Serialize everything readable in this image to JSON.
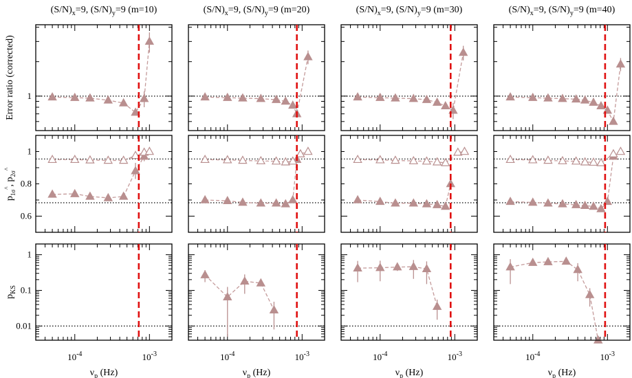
{
  "figure": {
    "xlabel": "ν_p (Hz)",
    "row_ylabels": [
      "Error ratio (corrected)",
      "p_1σ^, p_2σ^",
      "p_KS"
    ],
    "x_ticks": [
      {
        "label": "10^-4",
        "value": 0.0001
      },
      {
        "label": "10^-3",
        "value": 0.001
      }
    ],
    "y_ticks": {
      "row0": [
        {
          "label": "1",
          "value": 1
        }
      ],
      "row1": [
        {
          "label": "0.6",
          "value": 0.6
        },
        {
          "label": "0.8",
          "value": 0.8
        },
        {
          "label": "1",
          "value": 1.0
        }
      ],
      "row2": [
        {
          "label": "0.01",
          "value": 0.01
        },
        {
          "label": "0.1",
          "value": 0.1
        },
        {
          "label": "1",
          "value": 1
        }
      ]
    },
    "colors": {
      "marker": "#b98f8f",
      "line": "#c49a9a",
      "vline": "#e01010",
      "ref": "#000000"
    }
  },
  "chart_data": [
    {
      "type": "scatter",
      "title": "(S/N)x=9, (S/N)y=9 (m=10)",
      "title_parts": {
        "a": "(S/N)",
        "sub1": "x",
        "b": "=9, (S/N)",
        "sub2": "y",
        "c": "=9 (m=10)"
      },
      "xscale": "log",
      "xlim": [
        3e-05,
        0.002
      ],
      "vline": 0.00072,
      "panels": [
        {
          "row": 0,
          "yscale": "log",
          "ylim": [
            0.5,
            4.2
          ],
          "ref_lines": [
            1
          ],
          "series": [
            {
              "name": "error ratio",
              "filled": true,
              "x": [
                5e-05,
                0.0001,
                0.00016,
                0.00028,
                0.00045,
                0.00065,
                0.00085,
                0.001
              ],
              "y": [
                0.98,
                0.97,
                0.96,
                0.92,
                0.87,
                0.72,
                0.95,
                3.0
              ],
              "err": [
                0,
                0,
                0,
                0,
                0,
                0,
                0.15,
                0.6
              ]
            }
          ]
        },
        {
          "row": 1,
          "yscale": "linear",
          "ylim": [
            0.5,
            1.1
          ],
          "ref_lines": [
            0.683,
            0.954
          ],
          "series": [
            {
              "name": "p_1sigma",
              "filled": true,
              "x": [
                5e-05,
                0.0001,
                0.00016,
                0.00028,
                0.00045,
                0.00065,
                0.00085
              ],
              "y": [
                0.735,
                0.738,
                0.722,
                0.713,
                0.722,
                0.88,
                0.97
              ],
              "err": [
                0,
                0,
                0,
                0,
                0,
                0.05,
                0.03
              ]
            },
            {
              "name": "p_2sigma",
              "filled": false,
              "x": [
                5e-05,
                0.0001,
                0.00016,
                0.00028,
                0.00045,
                0.00065,
                0.00085,
                0.001
              ],
              "y": [
                0.95,
                0.95,
                0.947,
                0.945,
                0.945,
                0.975,
                0.995,
                1.0
              ],
              "err": [
                0,
                0,
                0,
                0,
                0,
                0,
                0,
                0
              ]
            }
          ]
        },
        {
          "row": 2,
          "yscale": "log",
          "ylim": [
            0.004,
            2
          ],
          "ref_lines": [
            0.01
          ],
          "series": []
        }
      ]
    },
    {
      "type": "scatter",
      "title": "(S/N)x=9, (S/N)y=9 (m=20)",
      "title_parts": {
        "a": "(S/N)",
        "sub1": "x",
        "b": "=9, (S/N)",
        "sub2": "y",
        "c": "=9 (m=20)"
      },
      "xscale": "log",
      "xlim": [
        3e-05,
        0.002
      ],
      "vline": 0.00085,
      "panels": [
        {
          "row": 0,
          "yscale": "log",
          "ylim": [
            0.5,
            4.2
          ],
          "ref_lines": [
            1
          ],
          "series": [
            {
              "name": "error ratio",
              "filled": true,
              "x": [
                5e-05,
                0.0001,
                0.00016,
                0.00028,
                0.00045,
                0.0006,
                0.00075,
                0.00085,
                0.0012
              ],
              "y": [
                0.98,
                0.97,
                0.96,
                0.95,
                0.93,
                0.9,
                0.83,
                0.7,
                2.2
              ],
              "err": [
                0,
                0,
                0,
                0,
                0,
                0,
                0,
                0,
                0.3
              ]
            }
          ]
        },
        {
          "row": 1,
          "yscale": "linear",
          "ylim": [
            0.5,
            1.1
          ],
          "ref_lines": [
            0.683,
            0.954
          ],
          "series": [
            {
              "name": "p_1sigma",
              "filled": true,
              "x": [
                5e-05,
                0.0001,
                0.00016,
                0.00028,
                0.00045,
                0.0006,
                0.00075,
                0.00085
              ],
              "y": [
                0.7,
                0.695,
                0.685,
                0.68,
                0.68,
                0.675,
                0.7,
                0.95
              ],
              "err": [
                0,
                0,
                0,
                0,
                0,
                0,
                0,
                0
              ]
            },
            {
              "name": "p_2sigma",
              "filled": false,
              "x": [
                5e-05,
                0.0001,
                0.00016,
                0.00028,
                0.00045,
                0.0006,
                0.00075,
                0.00095,
                0.0012
              ],
              "y": [
                0.95,
                0.948,
                0.945,
                0.942,
                0.94,
                0.935,
                0.94,
                0.985,
                1.0
              ],
              "err": [
                0,
                0,
                0,
                0,
                0,
                0,
                0,
                0,
                0
              ]
            }
          ]
        },
        {
          "row": 2,
          "yscale": "log",
          "ylim": [
            0.004,
            2
          ],
          "ref_lines": [
            0.01
          ],
          "series": [
            {
              "name": "p_KS",
              "filled": true,
              "x": [
                5e-05,
                0.0001,
                0.00017,
                0.00028,
                0.00042
              ],
              "y": [
                0.27,
                0.065,
                0.18,
                0.16,
                0.028
              ],
              "err": [
                0.1,
                0.06,
                0.1,
                0.03,
                0.02
              ]
            }
          ]
        }
      ]
    },
    {
      "type": "scatter",
      "title": "(S/N)x=9, (S/N)y=9 (m=30)",
      "title_parts": {
        "a": "(S/N)",
        "sub1": "x",
        "b": "=9, (S/N)",
        "sub2": "y",
        "c": "=9 (m=30)"
      },
      "xscale": "log",
      "xlim": [
        3e-05,
        0.002
      ],
      "vline": 0.00088,
      "panels": [
        {
          "row": 0,
          "yscale": "log",
          "ylim": [
            0.5,
            4.2
          ],
          "ref_lines": [
            1
          ],
          "series": [
            {
              "name": "error ratio",
              "filled": true,
              "x": [
                5e-05,
                0.0001,
                0.00016,
                0.00028,
                0.00042,
                0.00058,
                0.00075,
                0.00095,
                0.0013
              ],
              "y": [
                0.98,
                0.97,
                0.96,
                0.95,
                0.93,
                0.88,
                0.82,
                0.75,
                2.4
              ],
              "err": [
                0,
                0,
                0,
                0,
                0,
                0,
                0,
                0.12,
                0.35
              ]
            }
          ]
        },
        {
          "row": 1,
          "yscale": "linear",
          "ylim": [
            0.5,
            1.1
          ],
          "ref_lines": [
            0.683,
            0.954
          ],
          "series": [
            {
              "name": "p_1sigma",
              "filled": true,
              "x": [
                5e-05,
                0.0001,
                0.00016,
                0.00028,
                0.00042,
                0.00058,
                0.00075,
                0.00088
              ],
              "y": [
                0.7,
                0.69,
                0.68,
                0.68,
                0.675,
                0.67,
                0.66,
                0.8
              ],
              "err": [
                0,
                0,
                0,
                0,
                0,
                0,
                0,
                0
              ]
            },
            {
              "name": "p_2sigma",
              "filled": false,
              "x": [
                5e-05,
                0.0001,
                0.00016,
                0.00028,
                0.00042,
                0.00058,
                0.00075,
                0.0011,
                0.00135
              ],
              "y": [
                0.95,
                0.948,
                0.945,
                0.942,
                0.94,
                0.935,
                0.93,
                0.995,
                1.0
              ],
              "err": [
                0,
                0,
                0,
                0,
                0,
                0,
                0,
                0,
                0
              ]
            }
          ]
        },
        {
          "row": 2,
          "yscale": "log",
          "ylim": [
            0.004,
            2
          ],
          "ref_lines": [
            0.01
          ],
          "series": [
            {
              "name": "p_KS",
              "filled": true,
              "x": [
                5e-05,
                0.0001,
                0.00017,
                0.00028,
                0.00042,
                0.00058
              ],
              "y": [
                0.42,
                0.43,
                0.45,
                0.46,
                0.4,
                0.035
              ],
              "err": [
                0.25,
                0.25,
                0.1,
                0.25,
                0.25,
                0.02
              ]
            }
          ]
        }
      ]
    },
    {
      "type": "scatter",
      "title": "(S/N)x=9, (S/N)y=9 (m=40)",
      "title_parts": {
        "a": "(S/N)",
        "sub1": "x",
        "b": "=9, (S/N)",
        "sub2": "y",
        "c": "=9 (m=40)"
      },
      "xscale": "log",
      "xlim": [
        3e-05,
        0.002
      ],
      "vline": 0.00093,
      "panels": [
        {
          "row": 0,
          "yscale": "log",
          "ylim": [
            0.5,
            4.2
          ],
          "ref_lines": [
            1
          ],
          "series": [
            {
              "name": "error ratio",
              "filled": true,
              "x": [
                5e-05,
                0.0001,
                0.00016,
                0.00025,
                0.00038,
                0.0005,
                0.00065,
                0.00082,
                0.001,
                0.0012,
                0.0015
              ],
              "y": [
                0.98,
                0.97,
                0.96,
                0.95,
                0.94,
                0.92,
                0.88,
                0.82,
                0.75,
                0.6,
                1.9
              ],
              "err": [
                0,
                0,
                0,
                0,
                0,
                0,
                0,
                0,
                0,
                0,
                0.25
              ]
            }
          ]
        },
        {
          "row": 1,
          "yscale": "linear",
          "ylim": [
            0.5,
            1.1
          ],
          "ref_lines": [
            0.683,
            0.954
          ],
          "series": [
            {
              "name": "p_1sigma",
              "filled": true,
              "x": [
                5e-05,
                0.0001,
                0.00016,
                0.00025,
                0.00038,
                0.0005,
                0.00065,
                0.00082,
                0.001,
                0.0012
              ],
              "y": [
                0.69,
                0.685,
                0.68,
                0.675,
                0.67,
                0.665,
                0.66,
                0.645,
                0.69,
                0.97
              ],
              "err": [
                0,
                0,
                0,
                0,
                0,
                0,
                0,
                0,
                0,
                0
              ]
            },
            {
              "name": "p_2sigma",
              "filled": false,
              "x": [
                5e-05,
                0.0001,
                0.00016,
                0.00025,
                0.00038,
                0.0005,
                0.00065,
                0.00082,
                0.0012,
                0.0015
              ],
              "y": [
                0.95,
                0.948,
                0.945,
                0.942,
                0.94,
                0.935,
                0.933,
                0.93,
                0.985,
                1.0
              ],
              "err": [
                0,
                0,
                0,
                0,
                0,
                0,
                0,
                0,
                0,
                0
              ]
            }
          ]
        },
        {
          "row": 2,
          "yscale": "log",
          "ylim": [
            0.004,
            2
          ],
          "ref_lines": [
            0.01
          ],
          "series": [
            {
              "name": "p_KS",
              "filled": true,
              "x": [
                5e-05,
                0.0001,
                0.00016,
                0.00028,
                0.0004,
                0.00058,
                0.00075
              ],
              "y": [
                0.45,
                0.6,
                0.63,
                0.65,
                0.38,
                0.075,
                0.004
              ],
              "err": [
                0.3,
                0.1,
                0.1,
                0.1,
                0.2,
                0.04,
                0
              ]
            }
          ]
        }
      ]
    }
  ]
}
